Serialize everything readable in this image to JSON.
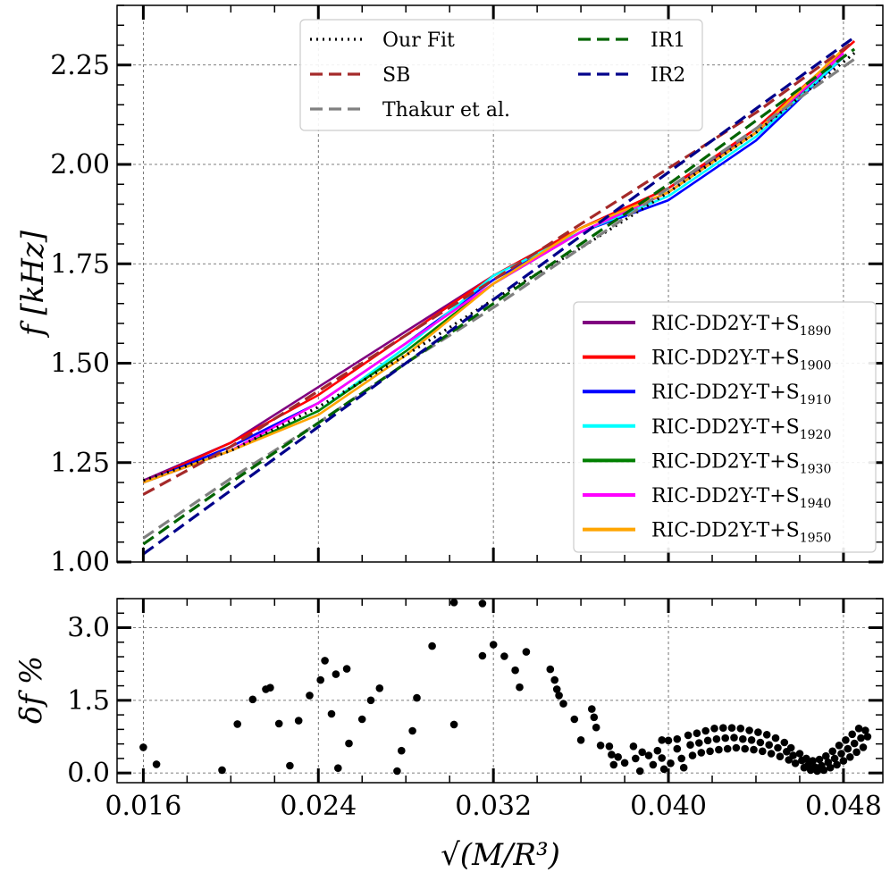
{
  "chart_data": [
    {
      "type": "line",
      "panel": "top",
      "ylabel": "f [kHz]",
      "xlabel": "",
      "xlim": [
        0.0148,
        0.0498
      ],
      "ylim": [
        1.0,
        2.4
      ],
      "grid": true,
      "yticks": [
        1.0,
        1.25,
        1.5,
        1.75,
        2.0,
        2.25
      ],
      "ytick_labels": [
        "1.00",
        "1.25",
        "1.50",
        "1.75",
        "2.00",
        "2.25"
      ],
      "xticks": [
        0.016,
        0.024,
        0.032,
        0.04,
        0.048
      ],
      "legend_top": {
        "placement": "top-center",
        "entries": [
          {
            "label": "Our Fit",
            "color": "#000000",
            "style": "dotted"
          },
          {
            "label": "IR1",
            "color": "#006400",
            "style": "dashed"
          },
          {
            "label": "SB",
            "color": "#a52a2a",
            "style": "dashed"
          },
          {
            "label": "IR2",
            "color": "#00008b",
            "style": "dashed"
          },
          {
            "label": "Thakur et al.",
            "color": "#808080",
            "style": "dashed"
          }
        ]
      },
      "fit_series": [
        {
          "name": "Our Fit",
          "color": "#000000",
          "dash": "2,5",
          "x": [
            0.016,
            0.02,
            0.024,
            0.028,
            0.032,
            0.036,
            0.04,
            0.044,
            0.0485
          ],
          "y": [
            1.205,
            1.28,
            1.39,
            1.52,
            1.66,
            1.79,
            1.93,
            2.08,
            2.28
          ]
        },
        {
          "name": "SB",
          "color": "#a52a2a",
          "dash": "14,7",
          "x": [
            0.016,
            0.02,
            0.024,
            0.028,
            0.032,
            0.036,
            0.04,
            0.044,
            0.0485
          ],
          "y": [
            1.17,
            1.29,
            1.43,
            1.57,
            1.71,
            1.85,
            1.99,
            2.13,
            2.31
          ]
        },
        {
          "name": "Thakur et al.",
          "color": "#808080",
          "dash": "14,7",
          "x": [
            0.016,
            0.02,
            0.024,
            0.028,
            0.032,
            0.036,
            0.04,
            0.044,
            0.0485
          ],
          "y": [
            1.06,
            1.21,
            1.35,
            1.5,
            1.64,
            1.79,
            1.94,
            2.09,
            2.265
          ]
        },
        {
          "name": "IR1",
          "color": "#006400",
          "dash": "14,7",
          "x": [
            0.016,
            0.02,
            0.024,
            0.028,
            0.032,
            0.036,
            0.04,
            0.044,
            0.0485
          ],
          "y": [
            1.045,
            1.2,
            1.35,
            1.5,
            1.65,
            1.8,
            1.95,
            2.11,
            2.29
          ]
        },
        {
          "name": "IR2",
          "color": "#00008b",
          "dash": "14,7",
          "x": [
            0.016,
            0.02,
            0.024,
            0.028,
            0.032,
            0.036,
            0.04,
            0.044,
            0.0485
          ],
          "y": [
            1.02,
            1.18,
            1.34,
            1.5,
            1.66,
            1.82,
            1.98,
            2.14,
            2.32
          ]
        }
      ],
      "legend_models": {
        "placement": "lower-right",
        "prefix": "RIC-DD2Y-T+S",
        "entries": [
          {
            "sub": "1890",
            "color": "#800080"
          },
          {
            "sub": "1900",
            "color": "#ff0000"
          },
          {
            "sub": "1910",
            "color": "#0000ff"
          },
          {
            "sub": "1920",
            "color": "#00ffff"
          },
          {
            "sub": "1930",
            "color": "#008000"
          },
          {
            "sub": "1940",
            "color": "#ff00ff"
          },
          {
            "sub": "1950",
            "color": "#ffa500"
          }
        ]
      },
      "model_series": [
        {
          "name": "RIC-DD2Y-T+S1890",
          "color": "#800080",
          "x": [
            0.016,
            0.02,
            0.024,
            0.028,
            0.032,
            0.036,
            0.04,
            0.044,
            0.048
          ],
          "y": [
            1.205,
            1.3,
            1.44,
            1.58,
            1.72,
            1.84,
            1.94,
            2.08,
            2.27
          ]
        },
        {
          "name": "RIC-DD2Y-T+S1900",
          "color": "#ff0000",
          "x": [
            0.016,
            0.02,
            0.024,
            0.028,
            0.032,
            0.036,
            0.04,
            0.044,
            0.0485
          ],
          "y": [
            1.2,
            1.3,
            1.42,
            1.57,
            1.72,
            1.84,
            1.94,
            2.09,
            2.31
          ]
        },
        {
          "name": "RIC-DD2Y-T+S1910",
          "color": "#0000ff",
          "x": [
            0.016,
            0.02,
            0.024,
            0.028,
            0.032,
            0.036,
            0.04,
            0.044,
            0.048
          ],
          "y": [
            1.2,
            1.29,
            1.4,
            1.55,
            1.71,
            1.83,
            1.91,
            2.06,
            2.27
          ]
        },
        {
          "name": "RIC-DD2Y-T+S1920",
          "color": "#00ffff",
          "x": [
            0.016,
            0.02,
            0.024,
            0.028,
            0.032,
            0.036,
            0.04,
            0.044,
            0.048
          ],
          "y": [
            1.2,
            1.28,
            1.38,
            1.54,
            1.72,
            1.83,
            1.92,
            2.07,
            2.27
          ]
        },
        {
          "name": "RIC-DD2Y-T+S1930",
          "color": "#008000",
          "x": [
            0.016,
            0.02,
            0.024,
            0.028,
            0.032,
            0.036,
            0.04,
            0.044,
            0.048
          ],
          "y": [
            1.2,
            1.28,
            1.38,
            1.53,
            1.7,
            1.83,
            1.93,
            2.08,
            2.28
          ]
        },
        {
          "name": "RIC-DD2Y-T+S1940",
          "color": "#ff00ff",
          "x": [
            0.016,
            0.02,
            0.024,
            0.028,
            0.032,
            0.036,
            0.04,
            0.044,
            0.048
          ],
          "y": [
            1.2,
            1.28,
            1.4,
            1.55,
            1.7,
            1.83,
            1.93,
            2.08,
            2.28
          ]
        },
        {
          "name": "RIC-DD2Y-T+S1950",
          "color": "#ffa500",
          "x": [
            0.016,
            0.02,
            0.024,
            0.028,
            0.032,
            0.036,
            0.04,
            0.044,
            0.048
          ],
          "y": [
            1.2,
            1.28,
            1.37,
            1.52,
            1.7,
            1.84,
            1.93,
            2.08,
            2.29
          ]
        }
      ]
    },
    {
      "type": "scatter",
      "panel": "bottom",
      "ylabel": "δf %",
      "xlabel": "√(M/R³)",
      "xlim": [
        0.0148,
        0.0498
      ],
      "ylim": [
        -0.2,
        3.6
      ],
      "grid": true,
      "yticks": [
        0.0,
        1.5,
        3.0
      ],
      "ytick_labels": [
        "0.0",
        "1.5",
        "3.0"
      ],
      "xticks": [
        0.016,
        0.024,
        0.032,
        0.04,
        0.048
      ],
      "xtick_labels": [
        "0.016",
        "0.024",
        "0.032",
        "0.040",
        "0.048"
      ],
      "points": [
        [
          0.016,
          0.53
        ],
        [
          0.0166,
          0.18
        ],
        [
          0.0196,
          0.06
        ],
        [
          0.0203,
          1.01
        ],
        [
          0.021,
          1.52
        ],
        [
          0.0216,
          1.73
        ],
        [
          0.0218,
          1.76
        ],
        [
          0.0222,
          1.02
        ],
        [
          0.0227,
          0.15
        ],
        [
          0.0231,
          1.08
        ],
        [
          0.0236,
          1.6
        ],
        [
          0.0241,
          1.92
        ],
        [
          0.0243,
          2.32
        ],
        [
          0.0246,
          1.22
        ],
        [
          0.0248,
          2.04
        ],
        [
          0.0249,
          0.1
        ],
        [
          0.0253,
          2.15
        ],
        [
          0.0254,
          0.61
        ],
        [
          0.026,
          1.11
        ],
        [
          0.0264,
          1.5
        ],
        [
          0.0268,
          1.75
        ],
        [
          0.0276,
          0.04
        ],
        [
          0.0278,
          0.46
        ],
        [
          0.0283,
          0.87
        ],
        [
          0.0285,
          1.55
        ],
        [
          0.0292,
          2.62
        ],
        [
          0.0302,
          1.0
        ],
        [
          0.0302,
          3.52
        ],
        [
          0.0315,
          2.42
        ],
        [
          0.0315,
          3.5
        ],
        [
          0.032,
          2.65
        ],
        [
          0.0325,
          2.41
        ],
        [
          0.033,
          2.12
        ],
        [
          0.0335,
          2.5
        ],
        [
          0.0332,
          1.77
        ],
        [
          0.0346,
          2.14
        ],
        [
          0.0348,
          1.92
        ],
        [
          0.0349,
          1.73
        ],
        [
          0.035,
          1.6
        ],
        [
          0.0352,
          1.43
        ],
        [
          0.0357,
          1.11
        ],
        [
          0.036,
          0.68
        ],
        [
          0.0365,
          1.32
        ],
        [
          0.0366,
          1.15
        ],
        [
          0.0367,
          0.94
        ],
        [
          0.0369,
          0.57
        ],
        [
          0.0373,
          0.55
        ],
        [
          0.0374,
          0.38
        ],
        [
          0.0375,
          0.17
        ],
        [
          0.0377,
          0.33
        ],
        [
          0.038,
          0.21
        ],
        [
          0.0384,
          0.55
        ],
        [
          0.0385,
          0.3
        ],
        [
          0.0387,
          0.04
        ],
        [
          0.0388,
          0.43
        ],
        [
          0.0391,
          0.36
        ],
        [
          0.0393,
          0.17
        ],
        [
          0.0395,
          0.46
        ],
        [
          0.0397,
          0.68
        ],
        [
          0.0397,
          0.31
        ],
        [
          0.0398,
          0.08
        ],
        [
          0.04,
          0.67
        ],
        [
          0.0401,
          0.2
        ],
        [
          0.0404,
          0.7
        ],
        [
          0.0404,
          0.5
        ],
        [
          0.0406,
          0.3
        ],
        [
          0.0407,
          0.11
        ],
        [
          0.0409,
          0.78
        ],
        [
          0.041,
          0.58
        ],
        [
          0.0411,
          0.36
        ],
        [
          0.0413,
          0.82
        ],
        [
          0.0414,
          0.62
        ],
        [
          0.0415,
          0.42
        ],
        [
          0.0417,
          0.87
        ],
        [
          0.0418,
          0.67
        ],
        [
          0.0419,
          0.45
        ],
        [
          0.0421,
          0.92
        ],
        [
          0.0422,
          0.7
        ],
        [
          0.0423,
          0.48
        ],
        [
          0.0425,
          0.93
        ],
        [
          0.0426,
          0.72
        ],
        [
          0.0427,
          0.5
        ],
        [
          0.0429,
          0.93
        ],
        [
          0.043,
          0.73
        ],
        [
          0.0431,
          0.52
        ],
        [
          0.0433,
          0.92
        ],
        [
          0.0434,
          0.7
        ],
        [
          0.0435,
          0.5
        ],
        [
          0.0437,
          0.88
        ],
        [
          0.0438,
          0.68
        ],
        [
          0.0439,
          0.48
        ],
        [
          0.0441,
          0.84
        ],
        [
          0.0442,
          0.63
        ],
        [
          0.0443,
          0.45
        ],
        [
          0.0445,
          0.79
        ],
        [
          0.0446,
          0.58
        ],
        [
          0.0447,
          0.4
        ],
        [
          0.0449,
          0.72
        ],
        [
          0.045,
          0.52
        ],
        [
          0.0451,
          0.34
        ],
        [
          0.0453,
          0.63
        ],
        [
          0.0454,
          0.44
        ],
        [
          0.0455,
          0.27
        ],
        [
          0.0456,
          0.52
        ],
        [
          0.0457,
          0.36
        ],
        [
          0.0458,
          0.2
        ],
        [
          0.046,
          0.4
        ],
        [
          0.0461,
          0.26
        ],
        [
          0.0462,
          0.11
        ],
        [
          0.0463,
          0.3
        ],
        [
          0.0464,
          0.17
        ],
        [
          0.0465,
          0.06
        ],
        [
          0.0466,
          0.25
        ],
        [
          0.0467,
          0.12
        ],
        [
          0.0468,
          0.04
        ],
        [
          0.0469,
          0.28
        ],
        [
          0.047,
          0.15
        ],
        [
          0.0471,
          0.06
        ],
        [
          0.0472,
          0.35
        ],
        [
          0.0473,
          0.22
        ],
        [
          0.0474,
          0.11
        ],
        [
          0.0475,
          0.45
        ],
        [
          0.0476,
          0.3
        ],
        [
          0.0477,
          0.17
        ],
        [
          0.0478,
          0.57
        ],
        [
          0.0479,
          0.4
        ],
        [
          0.048,
          0.25
        ],
        [
          0.0481,
          0.68
        ],
        [
          0.0482,
          0.5
        ],
        [
          0.0483,
          0.33
        ],
        [
          0.0484,
          0.8
        ],
        [
          0.0485,
          0.61
        ],
        [
          0.0486,
          0.43
        ],
        [
          0.0487,
          0.92
        ],
        [
          0.0488,
          0.72
        ],
        [
          0.0489,
          0.53
        ],
        [
          0.049,
          0.88
        ],
        [
          0.0491,
          0.75
        ]
      ],
      "point_color": "#000000"
    }
  ]
}
